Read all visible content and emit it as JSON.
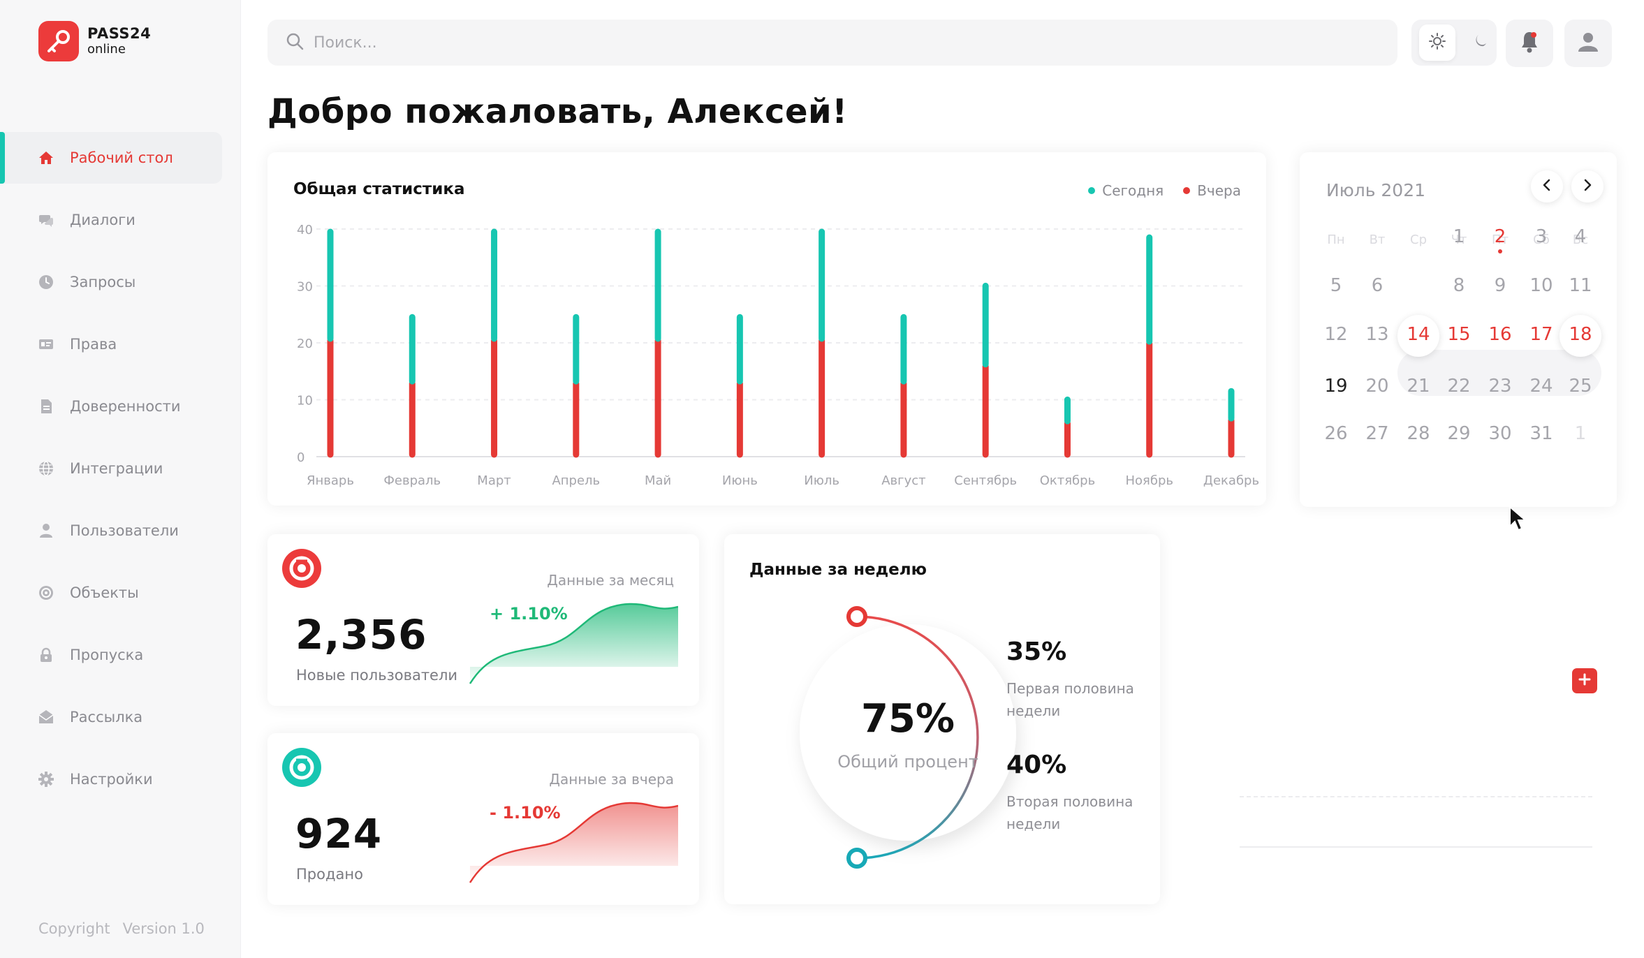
{
  "app": {
    "logo_name": "PASS24",
    "logo_sub": "online",
    "brand_color": "#ec3b3b",
    "accent_color": "#17c6b1"
  },
  "sidebar": {
    "items": [
      {
        "label": "Рабочий стол",
        "icon": "home-icon",
        "active": true
      },
      {
        "label": "Диалоги",
        "icon": "chat-icon",
        "active": false
      },
      {
        "label": "Запросы",
        "icon": "clock-icon",
        "active": false
      },
      {
        "label": "Права",
        "icon": "id-card-icon",
        "active": false
      },
      {
        "label": "Доверенности",
        "icon": "document-icon",
        "active": false
      },
      {
        "label": "Интеграции",
        "icon": "globe-icon",
        "active": false
      },
      {
        "label": "Пользователи",
        "icon": "user-icon",
        "active": false
      },
      {
        "label": "Объекты",
        "icon": "target-icon",
        "active": false
      },
      {
        "label": "Пропуска",
        "icon": "lock-icon",
        "active": false
      },
      {
        "label": "Рассылка",
        "icon": "mail-icon",
        "active": false
      },
      {
        "label": "Настройки",
        "icon": "gear-icon",
        "active": false
      }
    ],
    "copyright": "Copyright",
    "version": "Version 1.0"
  },
  "header": {
    "search_placeholder": "Поиск..."
  },
  "welcome": {
    "prefix": "Добро пожаловать, ",
    "name": "Алексей!"
  },
  "stats": {
    "title": "Общая статистика",
    "legend_today": "Сегодня",
    "legend_yesterday": "Вчера",
    "chart_data": {
      "type": "bar",
      "stacked": true,
      "categories": [
        "Январь",
        "Февраль",
        "Март",
        "Апрель",
        "Май",
        "Июнь",
        "Июль",
        "Август",
        "Сентябрь",
        "Октябрь",
        "Ноябрь",
        "Декабрь"
      ],
      "series": [
        {
          "name": "Вчера",
          "color": "#e53935",
          "values": [
            20,
            12.5,
            20,
            12.5,
            20,
            12.5,
            20,
            12.5,
            15.5,
            5.5,
            19.5,
            6
          ]
        },
        {
          "name": "Сегодня",
          "color": "#17c6b1",
          "values": [
            20,
            12.5,
            20,
            12.5,
            20,
            12.5,
            20,
            12.5,
            15,
            5,
            19.5,
            6
          ]
        }
      ],
      "yticks": [
        0,
        10,
        20,
        30,
        40
      ],
      "ylim": [
        0,
        40
      ],
      "grid": true,
      "legend": "top-right"
    }
  },
  "calendar": {
    "title": "Июль 2021",
    "dow": [
      "Пн",
      "Вт",
      "Ср",
      "Чт",
      "Пт",
      "Сб",
      "Вс"
    ],
    "rows": [
      [
        "",
        "",
        "",
        "1",
        "2",
        "3",
        "4"
      ],
      [
        "5",
        "6",
        "",
        "8",
        "9",
        "10",
        "11"
      ],
      [
        "12",
        "13",
        "14",
        "15",
        "16",
        "17",
        "18"
      ],
      [
        "19",
        "20",
        "21",
        "22",
        "23",
        "24",
        "25"
      ],
      [
        "26",
        "27",
        "28",
        "29",
        "30",
        "31",
        "1"
      ]
    ]
  },
  "users_card": {
    "period": "Данные за месяц",
    "value": "2,356",
    "label": "Новые пользователи",
    "delta": "+ 1.10%",
    "color": "#1fb978"
  },
  "sold_card": {
    "period": "Данные за вчера",
    "value": "924",
    "label": "Продано",
    "delta": "- 1.10%",
    "color": "#e53935"
  },
  "week": {
    "title": "Данные за неделю",
    "total": "75%",
    "total_label": "Общий процент",
    "first_pct": "35%",
    "first_label": "Первая половина недели",
    "second_pct": "40%",
    "second_label": "Вторая половина недели"
  }
}
